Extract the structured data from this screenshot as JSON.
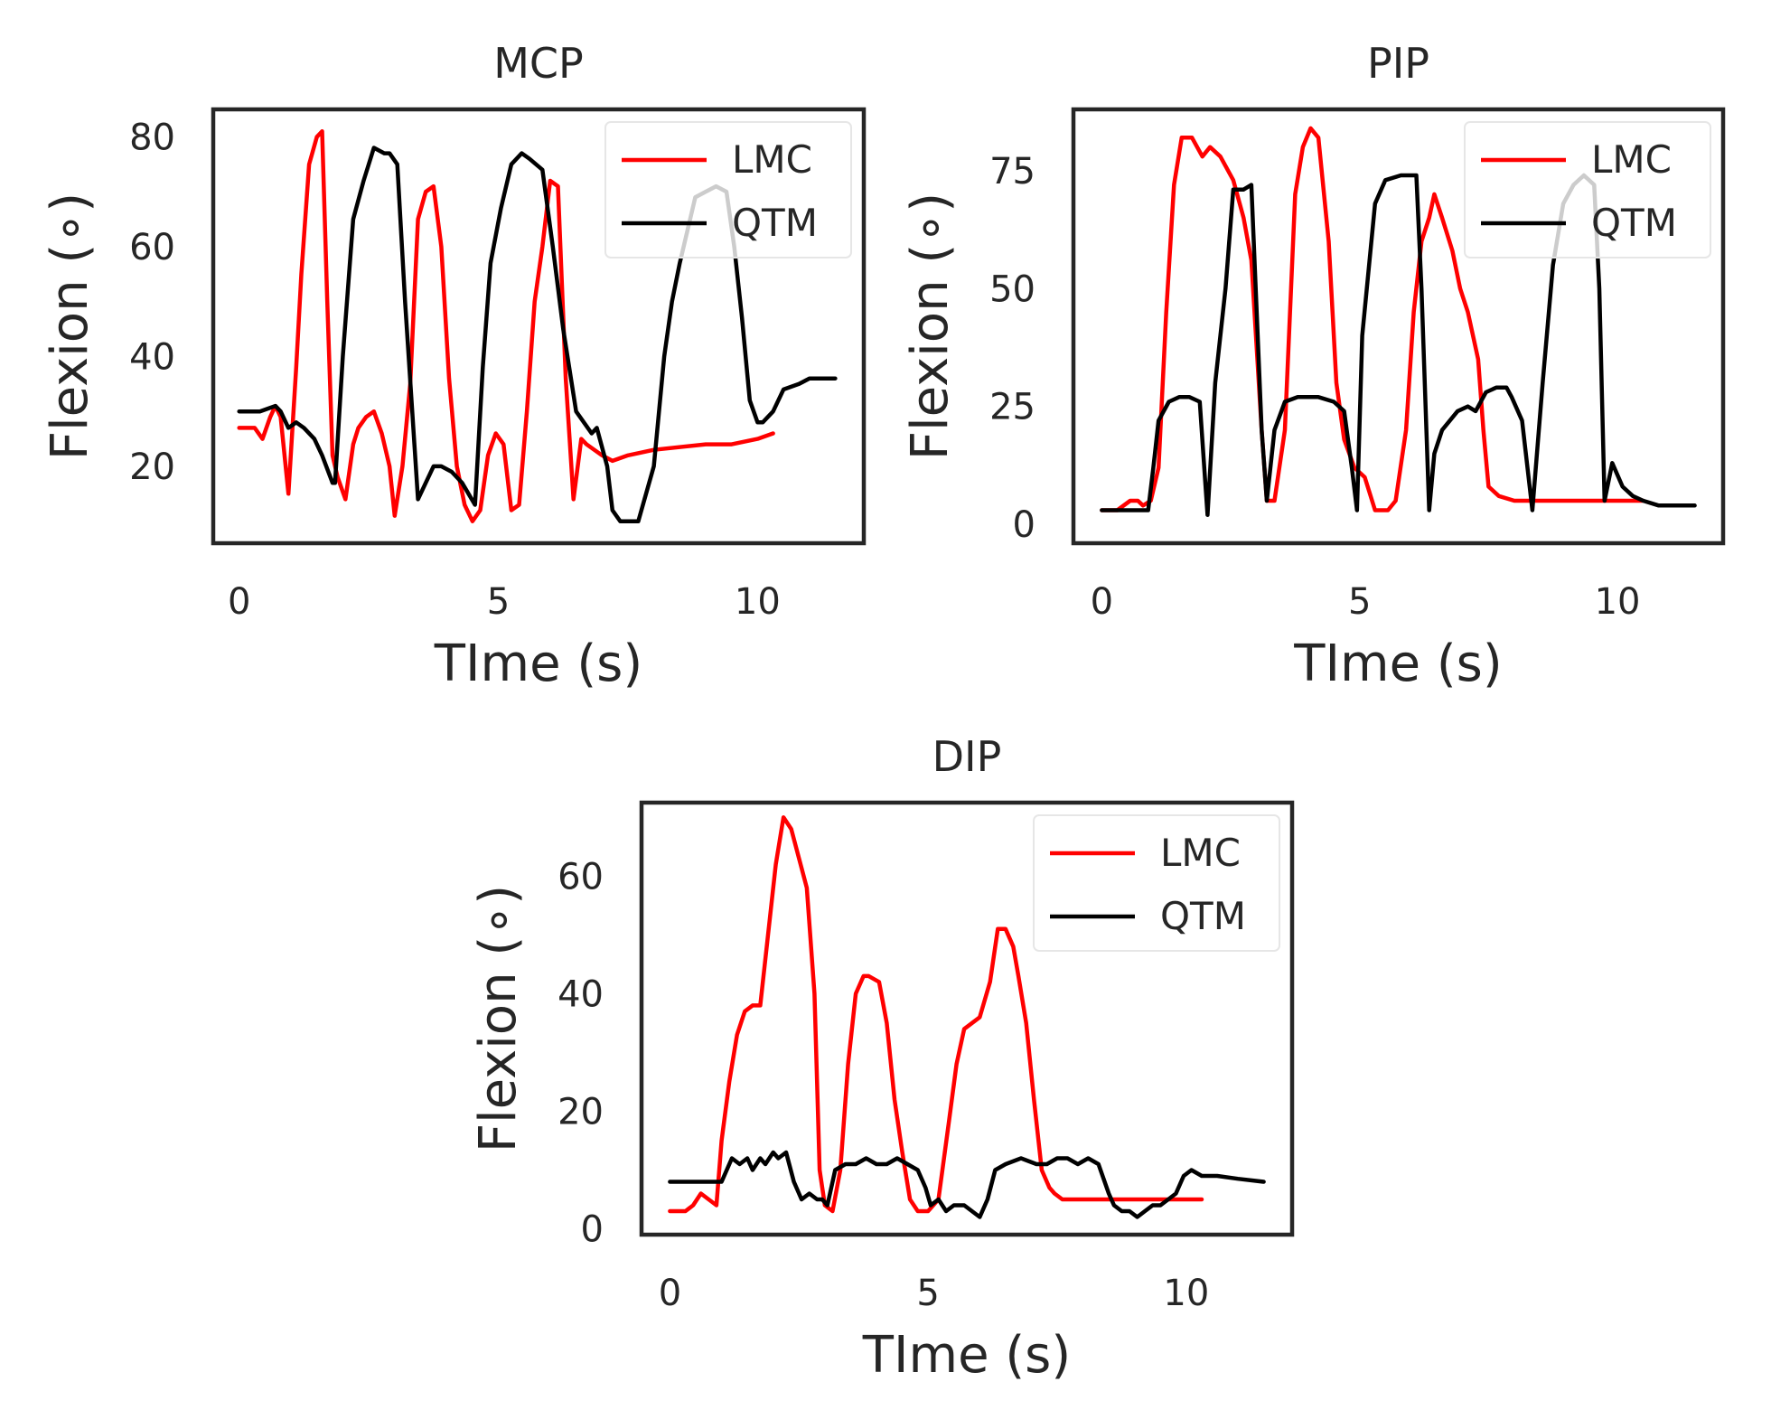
{
  "colors": {
    "LMC": "#ff0000",
    "QTM": "#000000"
  },
  "chart_data": [
    {
      "type": "line",
      "title": "MCP",
      "xlabel": "TIme (s)",
      "ylabel": "Flexion (∘)",
      "xlim": [
        -0.5,
        12.05
      ],
      "ylim": [
        6,
        85
      ],
      "xticks": [
        0,
        5,
        10
      ],
      "yticks": [
        20,
        40,
        60,
        80
      ],
      "legend": "upper right",
      "series": [
        {
          "name": "LMC",
          "x": [
            0,
            0.3,
            0.45,
            0.6,
            0.7,
            0.8,
            0.95,
            1.1,
            1.2,
            1.35,
            1.5,
            1.6,
            1.7,
            1.8,
            1.9,
            2.05,
            2.2,
            2.3,
            2.45,
            2.6,
            2.75,
            2.9,
            3.0,
            3.15,
            3.3,
            3.45,
            3.6,
            3.75,
            3.9,
            4.05,
            4.2,
            4.35,
            4.5,
            4.65,
            4.8,
            4.95,
            5.1,
            5.25,
            5.4,
            5.55,
            5.7,
            5.85,
            6.0,
            6.15,
            6.3,
            6.45,
            6.6,
            6.7,
            6.85,
            7.0,
            7.2,
            7.5,
            8.0,
            9.0,
            9.5,
            10.0,
            10.3
          ],
          "y": [
            27,
            27,
            25,
            29,
            31,
            29,
            15,
            38,
            55,
            75,
            80,
            81,
            50,
            22,
            18,
            14,
            24,
            27,
            29,
            30,
            26,
            20,
            11,
            20,
            35,
            65,
            70,
            71,
            60,
            36,
            20,
            13,
            10,
            12,
            22,
            26,
            24,
            12,
            13,
            30,
            50,
            60,
            72,
            71,
            36,
            14,
            25,
            24,
            23,
            22,
            21,
            22,
            23,
            24,
            24,
            25,
            26
          ]
        },
        {
          "name": "QTM",
          "x": [
            0,
            0.4,
            0.7,
            0.8,
            0.95,
            1.1,
            1.25,
            1.45,
            1.6,
            1.8,
            1.85,
            2.0,
            2.2,
            2.4,
            2.6,
            2.8,
            2.9,
            3.05,
            3.2,
            3.45,
            3.6,
            3.75,
            3.9,
            4.1,
            4.3,
            4.55,
            4.7,
            4.85,
            5.05,
            5.25,
            5.45,
            5.6,
            5.85,
            6.05,
            6.25,
            6.5,
            6.8,
            6.9,
            7.1,
            7.2,
            7.35,
            7.5,
            7.7,
            8.0,
            8.2,
            8.35,
            8.5,
            8.65,
            8.8,
            9.0,
            9.2,
            9.4,
            9.55,
            9.7,
            9.85,
            10.0,
            10.1,
            10.3,
            10.5,
            10.8,
            11.0,
            11.3,
            11.5
          ],
          "y": [
            30,
            30,
            31,
            30,
            27,
            28,
            27,
            25,
            22,
            17,
            17,
            40,
            65,
            72,
            78,
            77,
            77,
            75,
            50,
            14,
            17,
            20,
            20,
            19,
            17,
            13,
            38,
            57,
            67,
            75,
            77,
            76,
            74,
            60,
            45,
            30,
            26,
            27,
            20,
            12,
            10,
            10,
            10,
            20,
            40,
            50,
            57,
            63,
            69,
            70,
            71,
            70,
            60,
            47,
            32,
            28,
            28,
            30,
            34,
            35,
            36,
            36,
            36
          ]
        }
      ]
    },
    {
      "type": "line",
      "title": "PIP",
      "xlabel": "TIme (s)",
      "ylabel": "Flexion (∘)",
      "xlim": [
        -0.55,
        12.05
      ],
      "ylim": [
        -4,
        88
      ],
      "xticks": [
        0,
        5,
        10
      ],
      "yticks": [
        0,
        25,
        50,
        75
      ],
      "legend": "upper right",
      "series": [
        {
          "name": "LMC",
          "x": [
            0,
            0.3,
            0.55,
            0.7,
            0.8,
            0.95,
            1.1,
            1.25,
            1.4,
            1.55,
            1.75,
            1.95,
            2.1,
            2.3,
            2.55,
            2.75,
            2.9,
            3.1,
            3.2,
            3.35,
            3.55,
            3.75,
            3.9,
            4.05,
            4.2,
            4.4,
            4.55,
            4.7,
            4.9,
            5.1,
            5.3,
            5.55,
            5.7,
            5.9,
            6.05,
            6.2,
            6.35,
            6.45,
            6.6,
            6.8,
            6.95,
            7.1,
            7.3,
            7.4,
            7.5,
            7.7,
            8.0,
            10.5
          ],
          "y": [
            3,
            3,
            5,
            5,
            4,
            5,
            12,
            45,
            72,
            82,
            82,
            78,
            80,
            78,
            73,
            65,
            56,
            20,
            5,
            5,
            20,
            70,
            80,
            84,
            82,
            60,
            30,
            18,
            12,
            10,
            3,
            3,
            5,
            20,
            45,
            60,
            65,
            70,
            65,
            58,
            50,
            45,
            35,
            20,
            8,
            6,
            5,
            5
          ]
        },
        {
          "name": "QTM",
          "x": [
            0,
            0.3,
            0.6,
            0.9,
            1.0,
            1.1,
            1.3,
            1.5,
            1.7,
            1.9,
            2.0,
            2.05,
            2.2,
            2.4,
            2.55,
            2.75,
            2.9,
            3.1,
            3.2,
            3.35,
            3.55,
            3.8,
            4.2,
            4.5,
            4.7,
            4.85,
            4.95,
            5.05,
            5.3,
            5.5,
            5.8,
            6.1,
            6.2,
            6.35,
            6.45,
            6.6,
            6.9,
            7.1,
            7.25,
            7.45,
            7.65,
            7.85,
            7.95,
            8.15,
            8.35,
            8.55,
            8.75,
            8.95,
            9.15,
            9.35,
            9.55,
            9.65,
            9.75,
            9.9,
            10.1,
            10.3,
            10.5,
            10.8,
            11.0,
            11.3,
            11.5
          ],
          "y": [
            3,
            3,
            3,
            3,
            12,
            22,
            26,
            27,
            27,
            26,
            10,
            2,
            30,
            50,
            71,
            71,
            72,
            20,
            5,
            20,
            26,
            27,
            27,
            26,
            24,
            12,
            3,
            40,
            68,
            73,
            74,
            74,
            50,
            3,
            15,
            20,
            24,
            25,
            24,
            28,
            29,
            29,
            27,
            22,
            3,
            30,
            55,
            68,
            72,
            74,
            72,
            50,
            5,
            13,
            8,
            6,
            5,
            4,
            4,
            4,
            4
          ]
        }
      ]
    },
    {
      "type": "line",
      "title": "DIP",
      "xlabel": "TIme (s)",
      "ylabel": "Flexion (∘)",
      "xlim": [
        -0.55,
        12.05
      ],
      "ylim": [
        -1,
        72.5
      ],
      "xticks": [
        0,
        5,
        10
      ],
      "yticks": [
        0,
        20,
        40,
        60
      ],
      "legend": "upper right",
      "series": [
        {
          "name": "LMC",
          "x": [
            0,
            0.3,
            0.45,
            0.6,
            0.75,
            0.9,
            1.0,
            1.15,
            1.3,
            1.45,
            1.6,
            1.75,
            1.9,
            2.05,
            2.2,
            2.35,
            2.5,
            2.65,
            2.8,
            2.9,
            3.0,
            3.15,
            3.3,
            3.45,
            3.6,
            3.75,
            3.85,
            4.05,
            4.2,
            4.35,
            4.5,
            4.65,
            4.8,
            5.0,
            5.2,
            5.4,
            5.55,
            5.7,
            5.85,
            6.0,
            6.2,
            6.35,
            6.5,
            6.65,
            6.75,
            6.9,
            7.05,
            7.2,
            7.35,
            7.45,
            7.6,
            7.8,
            8.0,
            8.5,
            9.0,
            9.5,
            10.0,
            10.3
          ],
          "y": [
            3,
            3,
            4,
            6,
            5,
            4,
            15,
            25,
            33,
            37,
            38,
            38,
            50,
            62,
            70,
            68,
            63,
            58,
            40,
            10,
            4,
            3,
            10,
            28,
            40,
            43,
            43,
            42,
            35,
            22,
            13,
            5,
            3,
            3,
            5,
            18,
            28,
            34,
            35,
            36,
            42,
            51,
            51,
            48,
            43,
            35,
            22,
            10,
            7,
            6,
            5,
            5,
            5,
            5,
            5,
            5,
            5,
            5
          ]
        },
        {
          "name": "QTM",
          "x": [
            0,
            0.4,
            0.8,
            1.0,
            1.1,
            1.2,
            1.35,
            1.5,
            1.6,
            1.75,
            1.85,
            2.0,
            2.1,
            2.25,
            2.4,
            2.55,
            2.7,
            2.85,
            2.95,
            3.05,
            3.2,
            3.4,
            3.6,
            3.8,
            4.0,
            4.2,
            4.4,
            4.6,
            4.8,
            4.95,
            5.05,
            5.2,
            5.35,
            5.5,
            5.7,
            5.85,
            6.0,
            6.15,
            6.3,
            6.5,
            6.8,
            7.1,
            7.3,
            7.5,
            7.7,
            7.9,
            8.1,
            8.3,
            8.5,
            8.6,
            8.75,
            8.9,
            9.05,
            9.2,
            9.35,
            9.5,
            9.65,
            9.8,
            9.95,
            10.1,
            10.3,
            10.6,
            11.0,
            11.5
          ],
          "y": [
            8,
            8,
            8,
            8,
            10,
            12,
            11,
            12,
            10,
            12,
            11,
            13,
            12,
            13,
            8,
            5,
            6,
            5,
            5,
            4,
            10,
            11,
            11,
            12,
            11,
            11,
            12,
            11,
            10,
            7,
            4,
            5,
            3,
            4,
            4,
            3,
            2,
            5,
            10,
            11,
            12,
            11,
            11,
            12,
            12,
            11,
            12,
            11,
            6,
            4,
            3,
            3,
            2,
            3,
            4,
            4,
            5,
            6,
            9,
            10,
            9,
            9,
            8.5,
            8
          ]
        }
      ]
    }
  ]
}
